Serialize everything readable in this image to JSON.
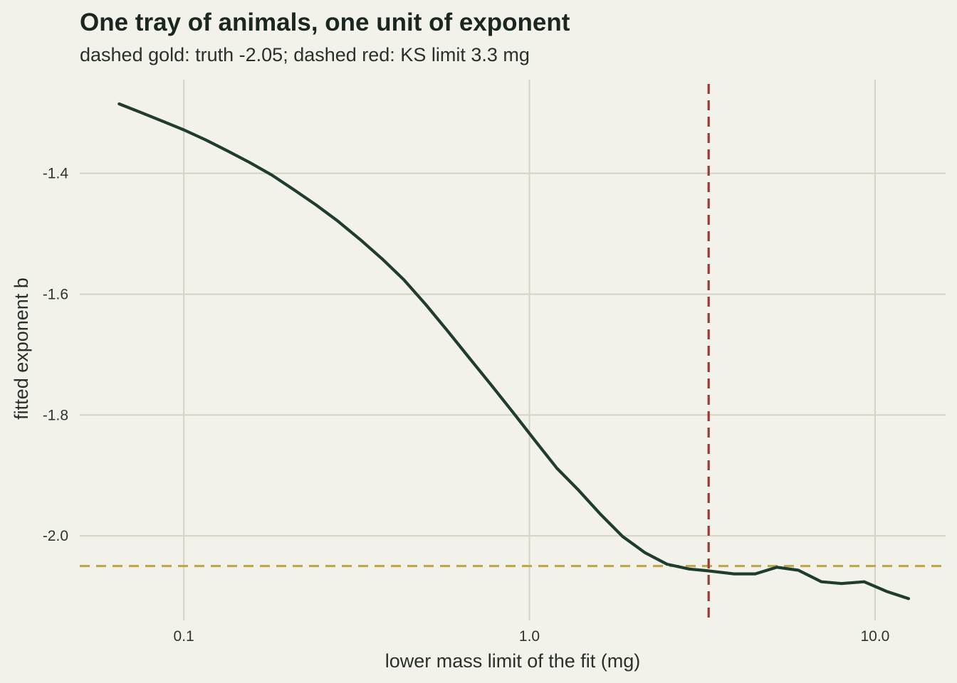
{
  "chart_data": {
    "type": "line",
    "title": "One tray of animals, one unit of exponent",
    "subtitle": "dashed gold: truth -2.05; dashed red: KS limit 3.3 mg",
    "xlabel": "lower mass limit of the fit (mg)",
    "ylabel": "fitted exponent b",
    "x_scale": "log10",
    "xlim": [
      0.05,
      16
    ],
    "ylim": [
      -2.14,
      -1.245
    ],
    "x_ticks": [
      0.1,
      1.0,
      10.0
    ],
    "x_tick_labels": [
      "0.1",
      "1.0",
      "10.0"
    ],
    "y_ticks": [
      -2.0,
      -1.8,
      -1.6,
      -1.4
    ],
    "y_tick_labels": [
      "-2.0",
      "-1.8",
      "-1.6",
      "-1.4"
    ],
    "grid": true,
    "series": [
      {
        "color": "#1f3d2e",
        "x": [
          0.065,
          0.075,
          0.087,
          0.1,
          0.116,
          0.134,
          0.155,
          0.18,
          0.208,
          0.241,
          0.279,
          0.323,
          0.374,
          0.433,
          0.501,
          0.58,
          0.671,
          0.777,
          0.9,
          1.04,
          1.2,
          1.39,
          1.61,
          1.86,
          2.16,
          2.5,
          2.9,
          3.3,
          3.9,
          4.5,
          5.2,
          6.0,
          7.0,
          8.0,
          9.3,
          10.8,
          12.5
        ],
        "y": [
          -1.285,
          -1.299,
          -1.314,
          -1.328,
          -1.345,
          -1.363,
          -1.382,
          -1.403,
          -1.427,
          -1.452,
          -1.479,
          -1.509,
          -1.541,
          -1.576,
          -1.617,
          -1.661,
          -1.706,
          -1.751,
          -1.797,
          -1.843,
          -1.888,
          -1.925,
          -1.965,
          -2.001,
          -2.028,
          -2.047,
          -2.055,
          -2.058,
          -2.063,
          -2.063,
          -2.052,
          -2.057,
          -2.076,
          -2.079,
          -2.076,
          -2.092,
          -2.104
        ]
      }
    ],
    "reference_lines": [
      {
        "axis": "y",
        "value": -2.05,
        "color": "#c2a64a",
        "style": "dashed"
      },
      {
        "axis": "x",
        "value": 3.3,
        "color": "#9a3b35",
        "style": "dashed"
      }
    ]
  }
}
